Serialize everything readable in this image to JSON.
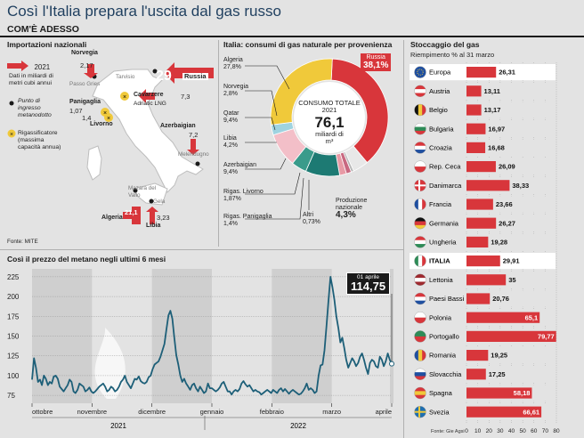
{
  "header": {
    "title": "Così l'Italia prepara l'uscita dal gas russo",
    "subtitle": "COM'È ADESSO"
  },
  "imports": {
    "title": "Importazioni nazionali",
    "legend_year": "2021",
    "legend_unit": "Dati in miliardi di metri cubi annui",
    "legend_entry": "Punto di ingresso metanodotto",
    "legend_regas": "Rigassificatore (massima capacità annua)",
    "source": "Fonte: MITE",
    "points": [
      {
        "name": "Norvegia",
        "place": "Passo Gries",
        "value": "2,17"
      },
      {
        "name": "Russia",
        "place": "Tarvisio",
        "value": "29"
      },
      {
        "name": "Cavarzere",
        "place": "Adriatic LNG",
        "value": "7,3"
      },
      {
        "name": "Panigaglia",
        "place": "",
        "value": "1,07"
      },
      {
        "name": "Livorno",
        "place": "",
        "value": "1,4"
      },
      {
        "name": "Azerbaigian",
        "place": "Melendugno",
        "value": "7,2"
      },
      {
        "name": "Algeria",
        "place": "Mazara del Vallo",
        "value": "21,1"
      },
      {
        "name": "Libia",
        "place": "Gela",
        "value": "3,23"
      }
    ]
  },
  "consumption": {
    "title": "Italia: consumi di gas naturale per provenienza",
    "center_label": "CONSUMO TOTALE 2021",
    "center_value": "76,1",
    "center_unit": "miliardi di m³",
    "chart_data": {
      "type": "pie",
      "unit": "%",
      "slices": [
        {
          "label": "Russia",
          "value": 38.1,
          "display": "38,1%",
          "color": "#d8363b"
        },
        {
          "label": "Produzione nazionale",
          "value": 4.3,
          "display": "4,3%",
          "color": "#e8e8e8"
        },
        {
          "label": "Altri",
          "value": 0.73,
          "display": "0,73%",
          "color": "#b8b8b8"
        },
        {
          "label": "Rigas. Panigaglia",
          "value": 1.4,
          "display": "1,4%",
          "color": "#c86880"
        },
        {
          "label": "Rigas. Livorno",
          "value": 1.87,
          "display": "1,87%",
          "color": "#e79aa5"
        },
        {
          "label": "Azerbaigian",
          "value": 9.4,
          "display": "9,4%",
          "color": "#1d7a73"
        },
        {
          "label": "Libia",
          "value": 4.2,
          "display": "4,2%",
          "color": "#3a9b8b"
        },
        {
          "label": "Qatar",
          "value": 9.4,
          "display": "9,4%",
          "color": "#f3bfc8"
        },
        {
          "label": "Norvegia",
          "value": 2.8,
          "display": "2,8%",
          "color": "#9fd3e0"
        },
        {
          "label": "Algeria",
          "value": 27.8,
          "display": "27,8%",
          "color": "#f0c93a"
        }
      ]
    }
  },
  "storage": {
    "title": "Stoccaggio del gas",
    "subtitle": "Riempimento % al 31 marzo",
    "source": "Fonte: Gie Agsi",
    "chart_data": {
      "type": "bar",
      "orientation": "horizontal",
      "xlim": [
        0,
        80
      ],
      "xticks": [
        0,
        10,
        20,
        30,
        40,
        50,
        60,
        70,
        80
      ],
      "categories": [
        "Europa",
        "Austria",
        "Belgio",
        "Bulgaria",
        "Croazia",
        "Rep. Ceca",
        "Danimarca",
        "Francia",
        "Germania",
        "Ungheria",
        "ITALIA",
        "Lettonia",
        "Paesi Bassi",
        "Polonia",
        "Portogallo",
        "Romania",
        "Slovacchia",
        "Spagna",
        "Svezia"
      ],
      "values": [
        26.31,
        13.11,
        13.17,
        16.97,
        16.68,
        26.09,
        38.33,
        23.66,
        26.27,
        19.28,
        29.91,
        35,
        20.76,
        65.1,
        79.77,
        19.25,
        17.25,
        58.18,
        66.61
      ],
      "labels": [
        "26,31",
        "13,11",
        "13,17",
        "16,97",
        "16,68",
        "26,09",
        "38,33",
        "23,66",
        "26,27",
        "19,28",
        "29,91",
        "35",
        "20,76",
        "65,1",
        "79,77",
        "19,25",
        "17,25",
        "58,18",
        "66,61"
      ]
    }
  },
  "price": {
    "title": "Così il prezzo del metano negli ultimi 6 mesi",
    "callout_date": "01 aprile",
    "callout_value": "114,75",
    "chart_data": {
      "type": "line",
      "ylim": [
        65,
        235
      ],
      "yticks": [
        75,
        100,
        125,
        150,
        175,
        200,
        225
      ],
      "months": [
        "ottobre",
        "novembre",
        "dicembre",
        "gennaio",
        "febbraio",
        "marzo",
        "aprile"
      ],
      "years": [
        "2021",
        "2022"
      ],
      "x": [
        0,
        1,
        2,
        3,
        4,
        5,
        6,
        7,
        8,
        9,
        10,
        11,
        12,
        13,
        14,
        15,
        16,
        17,
        18,
        19,
        20,
        21,
        22,
        23,
        24,
        25,
        26,
        27,
        28,
        29,
        30,
        31,
        32,
        33,
        34,
        35,
        36,
        37,
        38,
        39,
        40,
        41,
        42,
        43,
        44,
        45,
        46,
        47,
        48,
        49,
        50,
        51,
        52,
        53,
        54,
        55,
        56,
        57,
        58,
        59,
        60,
        61,
        62,
        63,
        64,
        65,
        66,
        67,
        68,
        69,
        70,
        71,
        72,
        73,
        74,
        75,
        76,
        77,
        78,
        79,
        80,
        81,
        82,
        83,
        84,
        85,
        86,
        87,
        88,
        89,
        90,
        91,
        92,
        93,
        94,
        95,
        96,
        97,
        98,
        99,
        100,
        101,
        102,
        103,
        104,
        105,
        106,
        107,
        108,
        109,
        110,
        111,
        112,
        113,
        114,
        115,
        116,
        117,
        118,
        119,
        120,
        121,
        122,
        123,
        124,
        125,
        126,
        127,
        128,
        129,
        130,
        131,
        132,
        133,
        134,
        135,
        136,
        137,
        138,
        139,
        140,
        141,
        142,
        143,
        144,
        145,
        146,
        147,
        148,
        149,
        150,
        151,
        152,
        153,
        154,
        155,
        156,
        157,
        158,
        159,
        160,
        161,
        162,
        163,
        164,
        165,
        166,
        167,
        168,
        169,
        170,
        171,
        172,
        173,
        174,
        175,
        176,
        177,
        178,
        179,
        180,
        181,
        182
      ],
      "y": [
        95,
        122,
        110,
        92,
        95,
        88,
        100,
        96,
        88,
        92,
        90,
        99,
        100,
        96,
        86,
        83,
        80,
        84,
        88,
        95,
        92,
        80,
        78,
        82,
        90,
        88,
        86,
        80,
        82,
        85,
        80,
        78,
        80,
        83,
        86,
        88,
        90,
        86,
        80,
        82,
        86,
        84,
        80,
        82,
        86,
        92,
        95,
        100,
        92,
        88,
        84,
        90,
        96,
        95,
        99,
        93,
        91,
        90,
        92,
        98,
        100,
        108,
        114,
        116,
        118,
        124,
        132,
        140,
        158,
        176,
        182,
        172,
        148,
        126,
        114,
        100,
        92,
        96,
        90,
        86,
        82,
        88,
        90,
        84,
        80,
        86,
        82,
        78,
        80,
        90,
        84,
        84,
        82,
        80,
        82,
        85,
        90,
        92,
        86,
        80,
        80,
        76,
        80,
        82,
        80,
        83,
        90,
        93,
        89,
        86,
        88,
        84,
        80,
        82,
        80,
        79,
        76,
        78,
        80,
        82,
        80,
        78,
        82,
        80,
        78,
        82,
        84,
        80,
        83,
        80,
        77,
        80,
        82,
        80,
        78,
        76,
        77,
        80,
        84,
        90,
        82,
        84,
        82,
        78,
        80,
        100,
        113,
        114,
        132,
        162,
        195,
        225,
        212,
        196,
        175,
        160,
        142,
        148,
        135,
        120,
        110,
        116,
        122,
        118,
        112,
        116,
        124,
        128,
        120,
        110,
        102,
        116,
        120,
        118,
        112,
        110,
        124,
        120,
        112,
        118,
        128,
        120,
        115
      ]
    },
    "shaded_months": [
      "ottobre",
      "dicembre",
      "febbraio",
      "aprile"
    ]
  }
}
